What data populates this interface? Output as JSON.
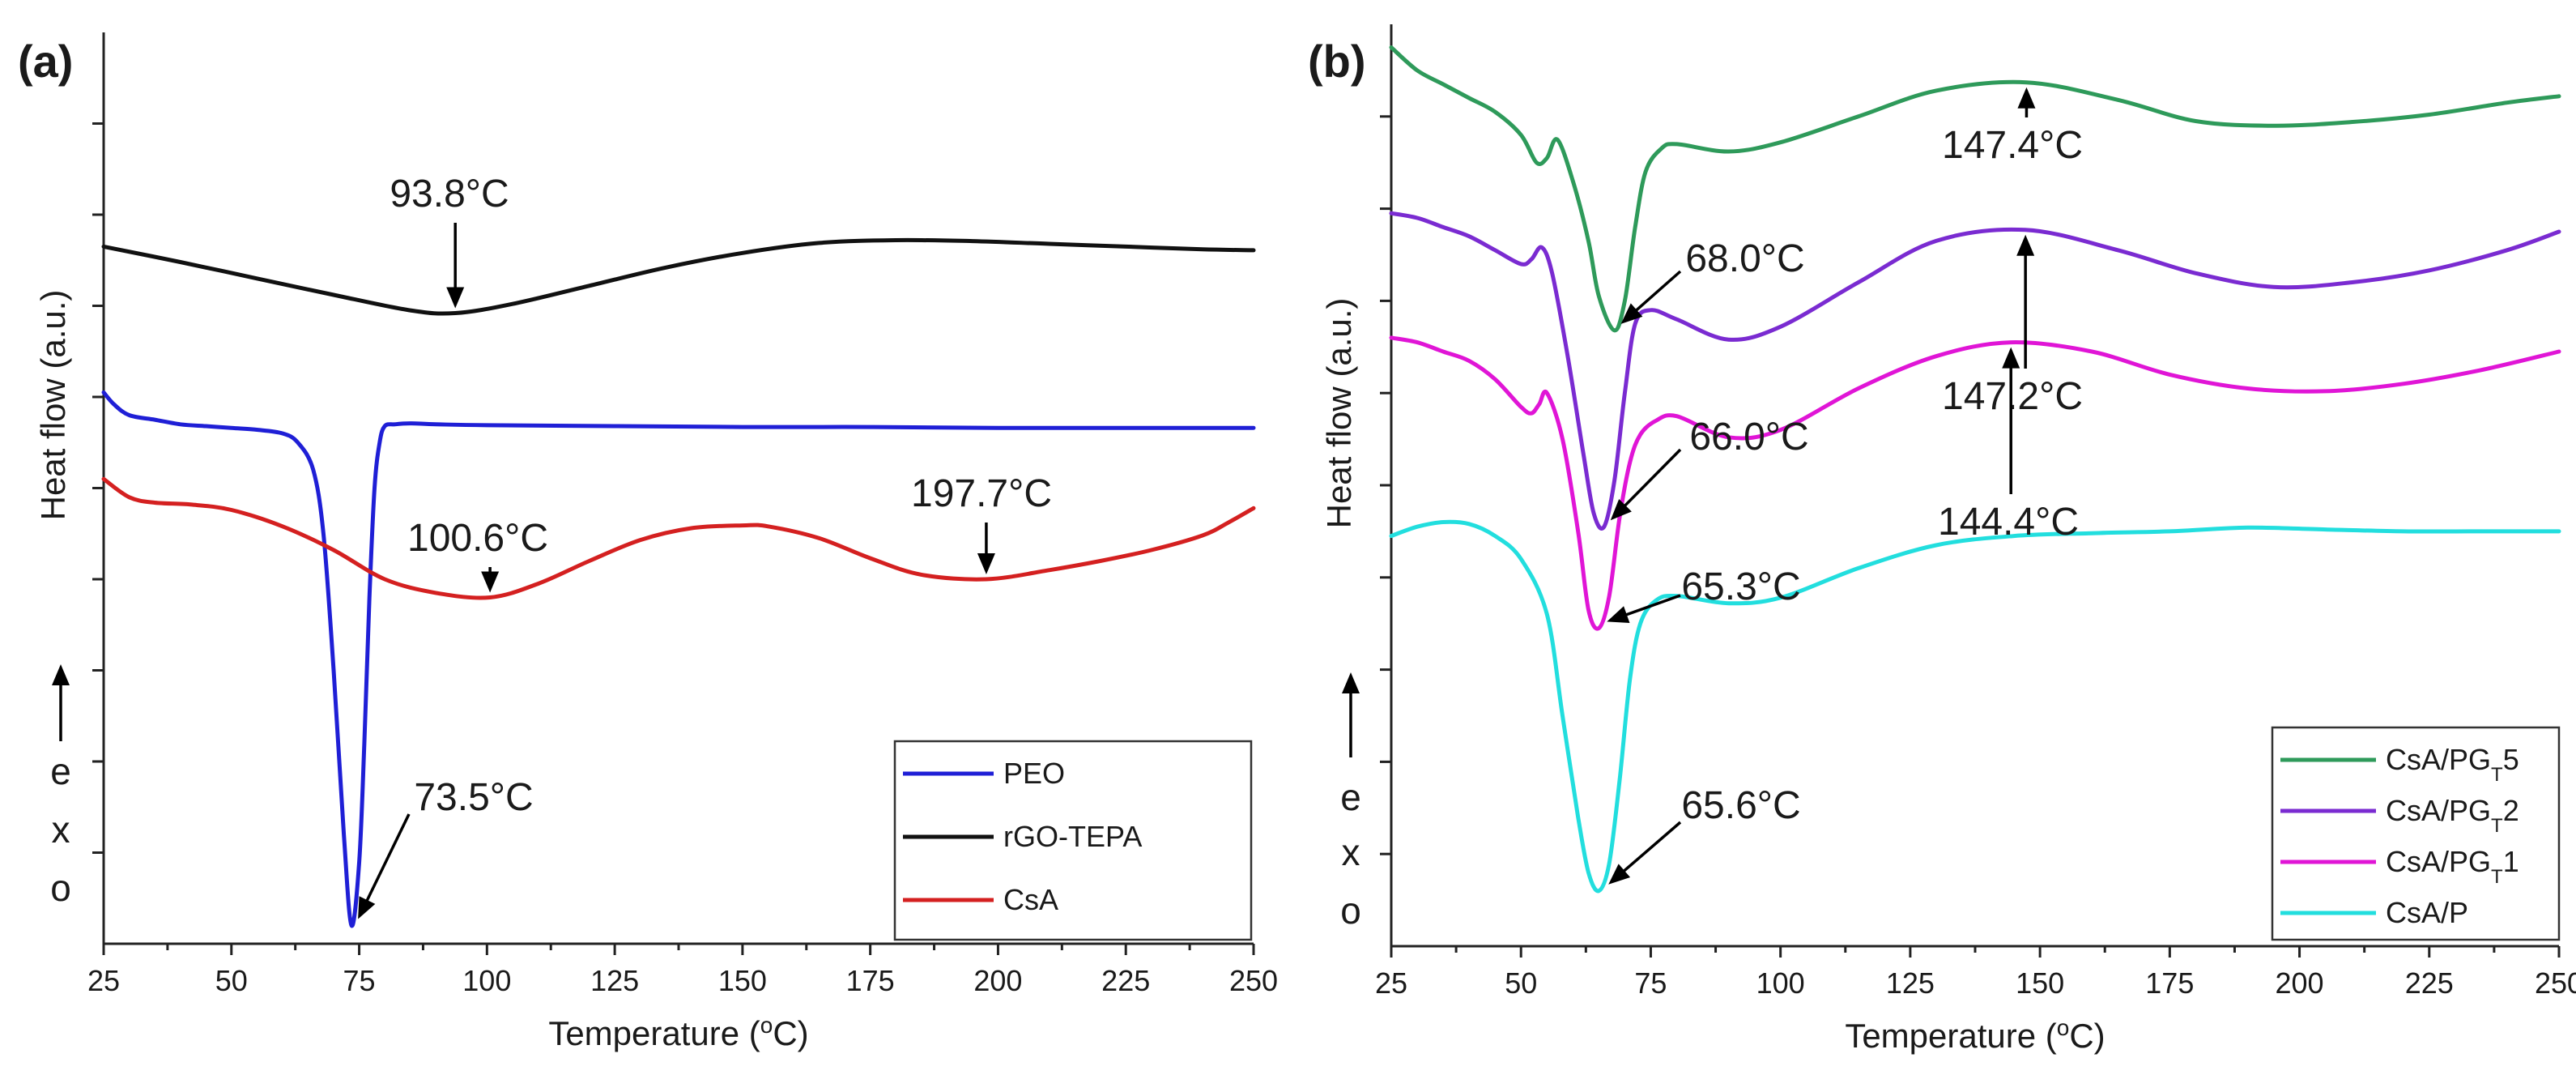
{
  "chart_data": [
    {
      "type": "line",
      "panel_label": "(a)",
      "xlabel": "Temperature (",
      "xlabel_sup": "o",
      "xlabel_suffix": "C)",
      "ylabel": "Heat flow (a.u.)",
      "exo_letters": [
        "e",
        "x",
        "o"
      ],
      "xlim": [
        25,
        250
      ],
      "ylim": [
        0,
        100
      ],
      "x_ticks": [
        "25",
        "50",
        "75",
        "100",
        "125",
        "150",
        "175",
        "200",
        "225",
        "250"
      ],
      "legend": [
        "PEO",
        "rGO-TEPA",
        "CsA"
      ],
      "series": [
        {
          "name": "PEO",
          "color": "#1f1fd6",
          "x": [
            25,
            27,
            30,
            35,
            40,
            45,
            50,
            55,
            60,
            63,
            66,
            68,
            70,
            72,
            73.5,
            75,
            76,
            77,
            78,
            79,
            80,
            82,
            85,
            90,
            100,
            125,
            150,
            175,
            200,
            225,
            250
          ],
          "y": [
            60.5,
            59.2,
            58.0,
            57.5,
            57.0,
            56.8,
            56.6,
            56.4,
            56.0,
            55.0,
            52.0,
            45.0,
            30.0,
            12.0,
            2.0,
            9.0,
            22.0,
            38.0,
            50.0,
            55.0,
            56.8,
            57.0,
            57.1,
            57.0,
            56.9,
            56.8,
            56.7,
            56.7,
            56.6,
            56.6,
            56.6
          ]
        },
        {
          "name": "rGO-TEPA",
          "color": "#111111",
          "x": [
            25,
            40,
            55,
            70,
            85,
            93.8,
            105,
            120,
            135,
            150,
            165,
            180,
            195,
            210,
            225,
            240,
            250
          ],
          "y": [
            76.5,
            74.8,
            73.0,
            71.2,
            69.5,
            69.2,
            70.2,
            72.2,
            74.2,
            75.8,
            76.9,
            77.2,
            77.1,
            76.8,
            76.5,
            76.2,
            76.1
          ]
        },
        {
          "name": "CsA",
          "color": "#d42020",
          "x": [
            25,
            30,
            35,
            42,
            50,
            60,
            70,
            80,
            90,
            100.6,
            110,
            120,
            130,
            140,
            150,
            155,
            165,
            175,
            185,
            197.7,
            210,
            220,
            230,
            240,
            245,
            250
          ],
          "y": [
            51.0,
            49.0,
            48.4,
            48.2,
            47.6,
            45.8,
            43.2,
            40.0,
            38.5,
            38.0,
            39.5,
            42.0,
            44.3,
            45.6,
            45.9,
            45.8,
            44.5,
            42.3,
            40.5,
            40.0,
            41.0,
            42.0,
            43.2,
            44.8,
            46.2,
            47.8
          ]
        }
      ],
      "annotations": [
        {
          "text": "93.8°C",
          "x": 93.8,
          "y": 69.2
        },
        {
          "text": "100.6°C",
          "x": 100.6,
          "y": 38.0
        },
        {
          "text": "197.7°C",
          "x": 197.7,
          "y": 40.0
        },
        {
          "text": "73.5°C",
          "x": 73.5,
          "y": 2.0
        }
      ]
    },
    {
      "type": "line",
      "panel_label": "(b)",
      "xlabel": "Temperature (",
      "xlabel_sup": "o",
      "xlabel_suffix": "C)",
      "ylabel": "Heat flow (a.u.)",
      "exo_letters": [
        "e",
        "x",
        "o"
      ],
      "xlim": [
        25,
        250
      ],
      "ylim": [
        0,
        100
      ],
      "x_ticks": [
        "25",
        "50",
        "75",
        "100",
        "125",
        "150",
        "175",
        "200",
        "225",
        "250"
      ],
      "legend": [
        {
          "main": "CsA/PG",
          "sub": "T",
          "tail": "5"
        },
        {
          "main": "CsA/PG",
          "sub": "T",
          "tail": "2"
        },
        {
          "main": "CsA/PG",
          "sub": "T",
          "tail": "1"
        },
        {
          "main": "CsA/P",
          "sub": "",
          "tail": ""
        }
      ],
      "series": [
        {
          "name": "CsA/PGT5",
          "color": "#2e9a5a",
          "x": [
            25,
            30,
            35,
            40,
            45,
            50,
            53,
            55,
            57,
            60,
            63,
            65,
            68,
            70,
            72,
            74,
            77,
            80,
            90,
            100,
            115,
            130,
            147.4,
            165,
            180,
            195,
            210,
            225,
            240,
            250
          ],
          "y": [
            97.5,
            95.0,
            93.5,
            92.0,
            90.5,
            88.0,
            85.0,
            85.5,
            87.5,
            83.0,
            76.5,
            70.5,
            66.8,
            70.0,
            78.0,
            84.0,
            86.5,
            87.0,
            86.2,
            87.2,
            90.0,
            92.8,
            93.7,
            91.8,
            89.5,
            89.0,
            89.4,
            90.2,
            91.5,
            92.2
          ]
        },
        {
          "name": "CsA/PGT2",
          "color": "#7a2bd1",
          "x": [
            25,
            30,
            35,
            40,
            45,
            50,
            52,
            54,
            56,
            59,
            62,
            64,
            66,
            68,
            70,
            72,
            75,
            80,
            90,
            100,
            115,
            130,
            147.2,
            165,
            180,
            195,
            210,
            225,
            240,
            250
          ],
          "y": [
            79.5,
            79.0,
            78.0,
            77.0,
            75.5,
            74.0,
            74.5,
            75.8,
            73.0,
            64.0,
            53.5,
            47.0,
            45.5,
            50.5,
            60.0,
            67.5,
            69.0,
            68.0,
            65.8,
            67.2,
            72.0,
            76.5,
            77.7,
            75.5,
            73.0,
            71.5,
            72.0,
            73.3,
            75.5,
            77.5
          ]
        },
        {
          "name": "CsA/PGT1",
          "color": "#e015d6",
          "x": [
            25,
            30,
            35,
            40,
            45,
            50,
            52,
            53.5,
            55,
            58,
            61,
            63,
            65,
            67,
            69,
            71,
            73,
            76,
            80,
            90,
            100,
            115,
            130,
            144.4,
            160,
            175,
            190,
            205,
            220,
            235,
            250
          ],
          "y": [
            66.0,
            65.5,
            64.5,
            63.5,
            61.5,
            58.5,
            57.8,
            58.8,
            60.0,
            55.0,
            45.0,
            36.5,
            34.5,
            38.0,
            46.5,
            52.5,
            55.5,
            57.0,
            57.5,
            55.2,
            56.0,
            60.5,
            64.0,
            65.5,
            64.5,
            62.0,
            60.5,
            60.2,
            61.0,
            62.5,
            64.5
          ]
        },
        {
          "name": "CsA/P",
          "color": "#22dede",
          "x": [
            25,
            30,
            35,
            40,
            45,
            50,
            55,
            58,
            61,
            63,
            65,
            67,
            69,
            71,
            73,
            76,
            80,
            90,
            100,
            115,
            130,
            145,
            160,
            175,
            190,
            205,
            220,
            235,
            250
          ],
          "y": [
            44.5,
            45.5,
            46.0,
            45.8,
            44.5,
            42.0,
            36.0,
            25.0,
            14.0,
            8.0,
            6.0,
            9.0,
            18.0,
            29.0,
            35.0,
            37.5,
            38.0,
            37.2,
            37.8,
            41.0,
            43.5,
            44.5,
            44.8,
            45.0,
            45.4,
            45.2,
            45.0,
            45.0,
            45.0
          ]
        }
      ],
      "annotations": [
        {
          "text": "147.4°C",
          "x": 147.4,
          "y": 93.7
        },
        {
          "text": "68.0°C",
          "x": 68.0,
          "y": 66.8
        },
        {
          "text": "147.2°C",
          "x": 147.2,
          "y": 77.7
        },
        {
          "text": "66.0°C",
          "x": 66.0,
          "y": 45.5
        },
        {
          "text": "144.4°C",
          "x": 144.4,
          "y": 65.5
        },
        {
          "text": "65.3°C",
          "x": 65.3,
          "y": 34.5
        },
        {
          "text": "65.6°C",
          "x": 65.6,
          "y": 6.0
        }
      ]
    }
  ]
}
